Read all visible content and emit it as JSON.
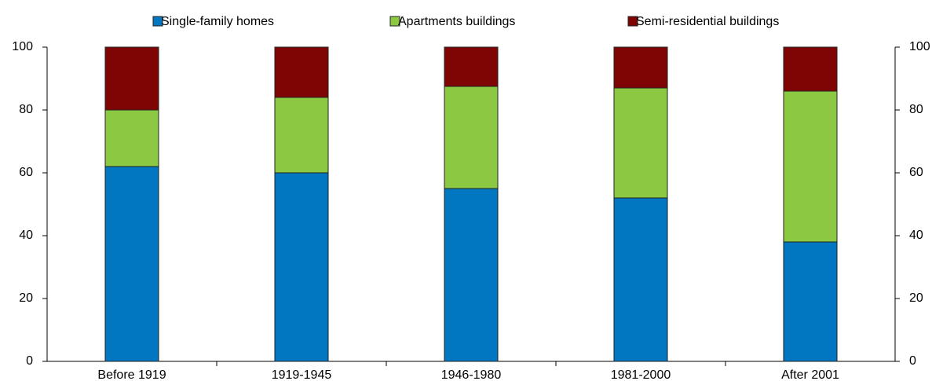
{
  "chart_data": {
    "type": "stacked_bar",
    "categories": [
      "Before 1919",
      "1919-1945",
      "1946-1980",
      "1981-2000",
      "After 2001"
    ],
    "series": [
      {
        "name": "Single-family homes",
        "color": "#0077c0",
        "values": [
          62,
          60,
          55,
          52,
          38
        ]
      },
      {
        "name": "Apartments buildings",
        "color": "#8cc842",
        "values": [
          18,
          24,
          32.5,
          35,
          48
        ]
      },
      {
        "name": "Semi-residential buildings",
        "color": "#7f0505",
        "values": [
          20,
          16,
          12.5,
          13,
          14
        ]
      }
    ],
    "ylim": [
      0,
      100
    ],
    "yticks": [
      0,
      20,
      40,
      60,
      80,
      100
    ],
    "y2lim": [
      0,
      100
    ],
    "y2ticks": [
      0,
      20,
      40,
      60,
      80,
      100
    ],
    "grid": false,
    "legend": "top"
  }
}
